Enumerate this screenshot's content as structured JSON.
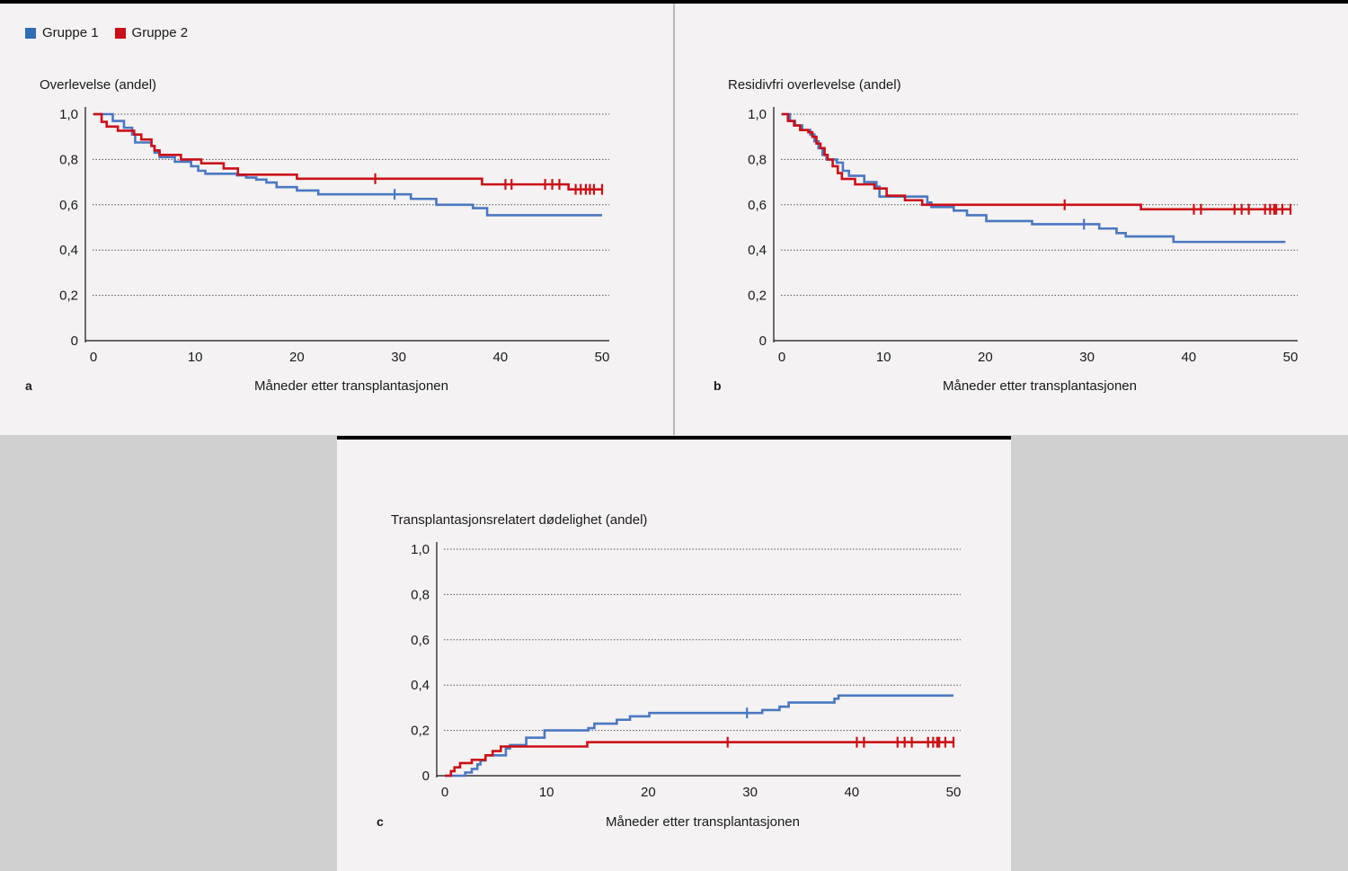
{
  "legend": [
    {
      "label": "Gruppe 1",
      "color": "#4a78c2"
    },
    {
      "label": "Gruppe 2",
      "color": "#cc1018"
    }
  ],
  "chart_data": [
    {
      "panel": "a",
      "type": "line",
      "step": true,
      "ylabel": "Overlevelse (andel)",
      "xlabel": "Måneder etter transplantasjonen",
      "xlim": [
        0,
        50
      ],
      "ylim": [
        0,
        1
      ],
      "xticks": [
        0,
        10,
        20,
        30,
        40,
        50
      ],
      "xtick_labels": [
        "0",
        "10",
        "20",
        "30",
        "40",
        "50"
      ],
      "yticks": [
        0,
        0.2,
        0.4,
        0.6,
        0.8,
        1.0
      ],
      "ytick_labels": [
        "0",
        "0,2",
        "0,4",
        "0,6",
        "0,8",
        "1,0"
      ],
      "grid": "horizontal dotted",
      "series": [
        {
          "name": "Gruppe 1",
          "color": "#4a78c2",
          "points": [
            [
              0,
              1.0
            ],
            [
              1.9,
              0.97
            ],
            [
              3.0,
              0.94
            ],
            [
              3.8,
              0.91
            ],
            [
              4.1,
              0.875
            ],
            [
              5.7,
              0.86
            ],
            [
              6.0,
              0.83
            ],
            [
              6.5,
              0.81
            ],
            [
              8.0,
              0.79
            ],
            [
              9.6,
              0.77
            ],
            [
              10.3,
              0.75
            ],
            [
              11.0,
              0.737
            ],
            [
              14.1,
              0.73
            ],
            [
              15.0,
              0.72
            ],
            [
              16.0,
              0.711
            ],
            [
              17.0,
              0.698
            ],
            [
              18.0,
              0.678
            ],
            [
              20.0,
              0.663
            ],
            [
              22.1,
              0.646
            ],
            [
              31.2,
              0.626
            ],
            [
              33.7,
              0.6
            ],
            [
              37.3,
              0.585
            ],
            [
              38.7,
              0.554
            ],
            [
              50,
              0.554
            ]
          ],
          "censored": [
            29.6
          ]
        },
        {
          "name": "Gruppe 2",
          "color": "#cc1018",
          "points": [
            [
              0,
              1.0
            ],
            [
              0.8,
              0.966
            ],
            [
              1.3,
              0.945
            ],
            [
              2.4,
              0.927
            ],
            [
              4.0,
              0.91
            ],
            [
              4.7,
              0.888
            ],
            [
              5.7,
              0.86
            ],
            [
              6.0,
              0.84
            ],
            [
              6.5,
              0.82
            ],
            [
              8.6,
              0.8
            ],
            [
              10.6,
              0.783
            ],
            [
              12.8,
              0.76
            ],
            [
              14.2,
              0.733
            ],
            [
              20.0,
              0.715
            ],
            [
              38.2,
              0.69
            ],
            [
              46.7,
              0.668
            ],
            [
              50,
              0.668
            ]
          ],
          "censored": [
            27.7,
            40.5,
            41.1,
            44.4,
            45.1,
            45.8,
            47.4,
            47.9,
            48.4,
            48.8,
            49.2,
            50
          ]
        }
      ]
    },
    {
      "panel": "b",
      "type": "line",
      "step": true,
      "ylabel": "Residivfri overlevelse (andel)",
      "xlabel": "Måneder etter transplantasjonen",
      "xlim": [
        0,
        50
      ],
      "ylim": [
        0,
        1
      ],
      "xticks": [
        0,
        10,
        20,
        30,
        40,
        50
      ],
      "xtick_labels": [
        "0",
        "10",
        "20",
        "30",
        "40",
        "50"
      ],
      "yticks": [
        0,
        0.2,
        0.4,
        0.6,
        0.8,
        1.0
      ],
      "ytick_labels": [
        "0",
        "0,2",
        "0,4",
        "0,6",
        "0,8",
        "1,0"
      ],
      "grid": "horizontal dotted",
      "series": [
        {
          "name": "Gruppe 1",
          "color": "#4a78c2",
          "points": [
            [
              0,
              1.0
            ],
            [
              0.8,
              0.97
            ],
            [
              1.3,
              0.95
            ],
            [
              2.0,
              0.93
            ],
            [
              2.8,
              0.91
            ],
            [
              3.2,
              0.88
            ],
            [
              3.6,
              0.85
            ],
            [
              4.0,
              0.82
            ],
            [
              4.4,
              0.8
            ],
            [
              5.4,
              0.786
            ],
            [
              6.0,
              0.75
            ],
            [
              6.6,
              0.728
            ],
            [
              8.1,
              0.7
            ],
            [
              9.3,
              0.68
            ],
            [
              9.6,
              0.636
            ],
            [
              14.3,
              0.61
            ],
            [
              14.7,
              0.59
            ],
            [
              16.9,
              0.574
            ],
            [
              18.2,
              0.554
            ],
            [
              20.1,
              0.528
            ],
            [
              24.6,
              0.514
            ],
            [
              31.2,
              0.495
            ],
            [
              32.9,
              0.475
            ],
            [
              33.8,
              0.46
            ],
            [
              38.5,
              0.436
            ],
            [
              49.5,
              0.436
            ]
          ],
          "censored": [
            29.7
          ]
        },
        {
          "name": "Gruppe 2",
          "color": "#cc1018",
          "points": [
            [
              0,
              1.0
            ],
            [
              0.6,
              0.97
            ],
            [
              1.2,
              0.95
            ],
            [
              1.8,
              0.93
            ],
            [
              2.6,
              0.92
            ],
            [
              3.0,
              0.9
            ],
            [
              3.4,
              0.87
            ],
            [
              3.8,
              0.85
            ],
            [
              4.2,
              0.82
            ],
            [
              4.5,
              0.8
            ],
            [
              5.0,
              0.77
            ],
            [
              5.5,
              0.74
            ],
            [
              5.9,
              0.714
            ],
            [
              7.2,
              0.69
            ],
            [
              9.1,
              0.672
            ],
            [
              10.3,
              0.64
            ],
            [
              12.1,
              0.62
            ],
            [
              13.8,
              0.6
            ],
            [
              35.3,
              0.58
            ],
            [
              50,
              0.58
            ]
          ],
          "censored": [
            27.8,
            40.5,
            41.2,
            44.5,
            45.2,
            45.9,
            47.5,
            48.0,
            48.4,
            48.6,
            49.2,
            50
          ]
        }
      ]
    },
    {
      "panel": "c",
      "type": "line",
      "step": true,
      "ylabel": "Transplantasjonsrelatert dødelighet (andel)",
      "xlabel": "Måneder etter transplantasjonen",
      "xlim": [
        0,
        50
      ],
      "ylim": [
        0,
        1
      ],
      "xticks": [
        0,
        10,
        20,
        30,
        40,
        50
      ],
      "xtick_labels": [
        "0",
        "10",
        "20",
        "30",
        "40",
        "50"
      ],
      "yticks": [
        0,
        0.2,
        0.4,
        0.6,
        0.8,
        1.0
      ],
      "ytick_labels": [
        "0",
        "0,2",
        "0,4",
        "0,6",
        "0,8",
        "1,0"
      ],
      "grid": "horizontal dotted",
      "series": [
        {
          "name": "Gruppe 1",
          "color": "#4a78c2",
          "points": [
            [
              0,
              0
            ],
            [
              2.0,
              0.014
            ],
            [
              2.65,
              0.03
            ],
            [
              3.2,
              0.05
            ],
            [
              3.5,
              0.067
            ],
            [
              4.0,
              0.09
            ],
            [
              6.0,
              0.12
            ],
            [
              6.4,
              0.135
            ],
            [
              8.0,
              0.168
            ],
            [
              9.8,
              0.2
            ],
            [
              14.1,
              0.21
            ],
            [
              14.7,
              0.23
            ],
            [
              16.9,
              0.247
            ],
            [
              18.2,
              0.262
            ],
            [
              20.1,
              0.277
            ],
            [
              31.2,
              0.29
            ],
            [
              32.9,
              0.305
            ],
            [
              33.8,
              0.323
            ],
            [
              38.3,
              0.34
            ],
            [
              38.7,
              0.354
            ],
            [
              50,
              0.354
            ]
          ],
          "censored": [
            29.7
          ]
        },
        {
          "name": "Gruppe 2",
          "color": "#cc1018",
          "points": [
            [
              0,
              0
            ],
            [
              0.6,
              0.02
            ],
            [
              0.95,
              0.037
            ],
            [
              1.5,
              0.056
            ],
            [
              2.65,
              0.07
            ],
            [
              4.0,
              0.09
            ],
            [
              4.7,
              0.109
            ],
            [
              5.5,
              0.129
            ],
            [
              14.0,
              0.148
            ],
            [
              50,
              0.148
            ]
          ],
          "censored": [
            27.8,
            40.5,
            41.2,
            44.5,
            45.2,
            45.9,
            47.5,
            48.0,
            48.4,
            48.6,
            49.2,
            50
          ]
        }
      ]
    }
  ]
}
